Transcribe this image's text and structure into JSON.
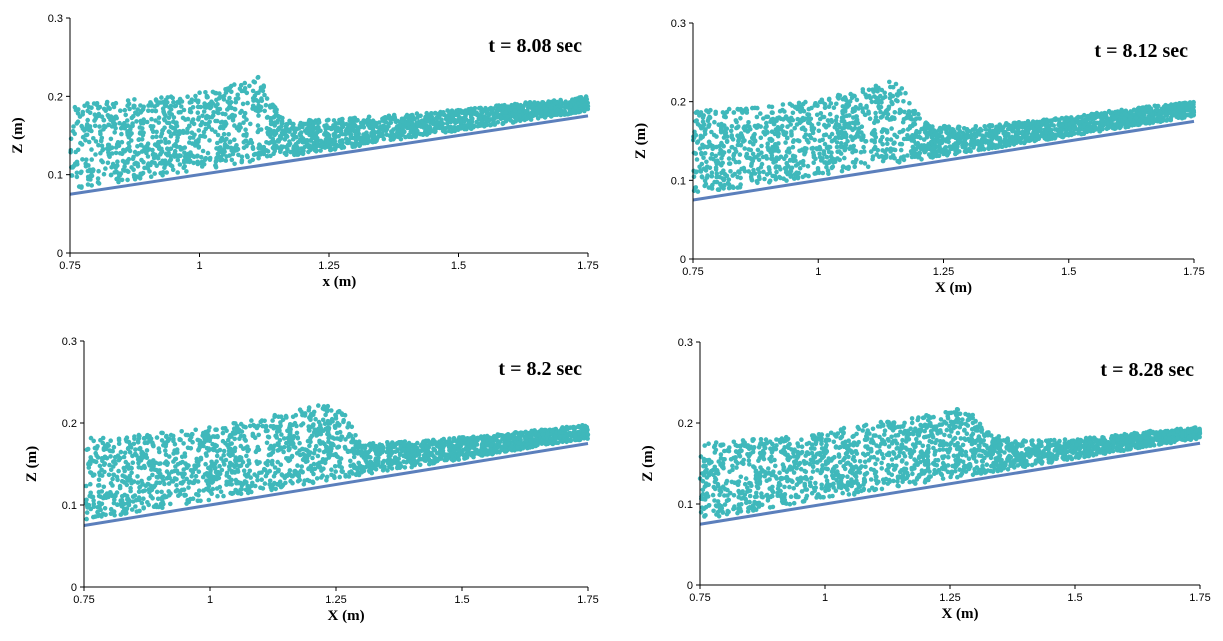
{
  "chart_data": [
    {
      "type": "scatter",
      "title": "",
      "annotation": "t = 8.08 sec",
      "xlabel": "x (m)",
      "ylabel": "Z (m)",
      "xlim": [
        0.75,
        1.75
      ],
      "ylim": [
        0,
        0.3
      ],
      "x_ticks": [
        "0.75",
        "1",
        "1.25",
        "1.5",
        "1.75"
      ],
      "y_ticks": [
        "0",
        "0.1",
        "0.2",
        "0.3"
      ],
      "grid": false,
      "colors": {
        "particles": "#3fb8bb",
        "bed": "#5b7fbc"
      },
      "bed_line": {
        "x": [
          0.75,
          1.75
        ],
        "z": [
          0.075,
          0.175
        ]
      },
      "free_surface": {
        "x": [
          0.75,
          0.9,
          1.0,
          1.05,
          1.1,
          1.12,
          1.13,
          1.17,
          1.25,
          1.45,
          1.6,
          1.75
        ],
        "z": [
          0.19,
          0.198,
          0.205,
          0.21,
          0.225,
          0.225,
          0.2,
          0.17,
          0.17,
          0.18,
          0.19,
          0.2
        ]
      },
      "front_x": 1.14
    },
    {
      "type": "scatter",
      "title": "",
      "annotation": "t = 8.12 sec",
      "xlabel": "X (m)",
      "ylabel": "Z (m)",
      "xlim": [
        0.75,
        1.75
      ],
      "ylim": [
        0,
        0.3
      ],
      "x_ticks": [
        "0.75",
        "1",
        "1.25",
        "1.5",
        "1.75"
      ],
      "y_ticks": [
        "0",
        "0.1",
        "0.2",
        "0.3"
      ],
      "grid": false,
      "colors": {
        "particles": "#3fb8bb",
        "bed": "#5b7fbc"
      },
      "bed_line": {
        "x": [
          0.75,
          1.75
        ],
        "z": [
          0.075,
          0.175
        ]
      },
      "free_surface": {
        "x": [
          0.75,
          0.9,
          1.0,
          1.08,
          1.15,
          1.17,
          1.18,
          1.22,
          1.3,
          1.5,
          1.6,
          1.75
        ],
        "z": [
          0.188,
          0.195,
          0.202,
          0.215,
          0.228,
          0.225,
          0.2,
          0.17,
          0.168,
          0.18,
          0.19,
          0.2
        ]
      },
      "front_x": 1.18
    },
    {
      "type": "scatter",
      "title": "",
      "annotation": "t = 8.2 sec",
      "xlabel": "X (m)",
      "ylabel": "Z (m)",
      "xlim": [
        0.75,
        1.75
      ],
      "ylim": [
        0,
        0.3
      ],
      "x_ticks": [
        "0.75",
        "1",
        "1.25",
        "1.5",
        "1.75"
      ],
      "y_ticks": [
        "0",
        "0.1",
        "0.2",
        "0.3"
      ],
      "grid": false,
      "colors": {
        "particles": "#3fb8bb",
        "bed": "#5b7fbc"
      },
      "bed_line": {
        "x": [
          0.75,
          1.75
        ],
        "z": [
          0.075,
          0.175
        ]
      },
      "free_surface": {
        "x": [
          0.75,
          0.9,
          1.0,
          1.1,
          1.2,
          1.24,
          1.27,
          1.3,
          1.4,
          1.55,
          1.65,
          1.75
        ],
        "z": [
          0.182,
          0.188,
          0.195,
          0.205,
          0.222,
          0.222,
          0.21,
          0.175,
          0.178,
          0.185,
          0.192,
          0.198
        ]
      },
      "front_x": 1.27
    },
    {
      "type": "scatter",
      "title": "",
      "annotation": "t = 8.28 sec",
      "xlabel": "X (m)",
      "ylabel": "Z (m)",
      "xlim": [
        0.75,
        1.75
      ],
      "ylim": [
        0,
        0.3
      ],
      "x_ticks": [
        "0.75",
        "1",
        "1.25",
        "1.5",
        "1.75"
      ],
      "y_ticks": [
        "0",
        "0.1",
        "0.2",
        "0.3"
      ],
      "grid": false,
      "colors": {
        "particles": "#3fb8bb",
        "bed": "#5b7fbc"
      },
      "bed_line": {
        "x": [
          0.75,
          1.75
        ],
        "z": [
          0.075,
          0.175
        ]
      },
      "free_surface": {
        "x": [
          0.75,
          0.9,
          1.0,
          1.1,
          1.2,
          1.27,
          1.3,
          1.32,
          1.38,
          1.5,
          1.65,
          1.75
        ],
        "z": [
          0.175,
          0.182,
          0.19,
          0.2,
          0.21,
          0.218,
          0.212,
          0.19,
          0.178,
          0.18,
          0.19,
          0.195
        ]
      },
      "front_x": 1.33
    }
  ]
}
